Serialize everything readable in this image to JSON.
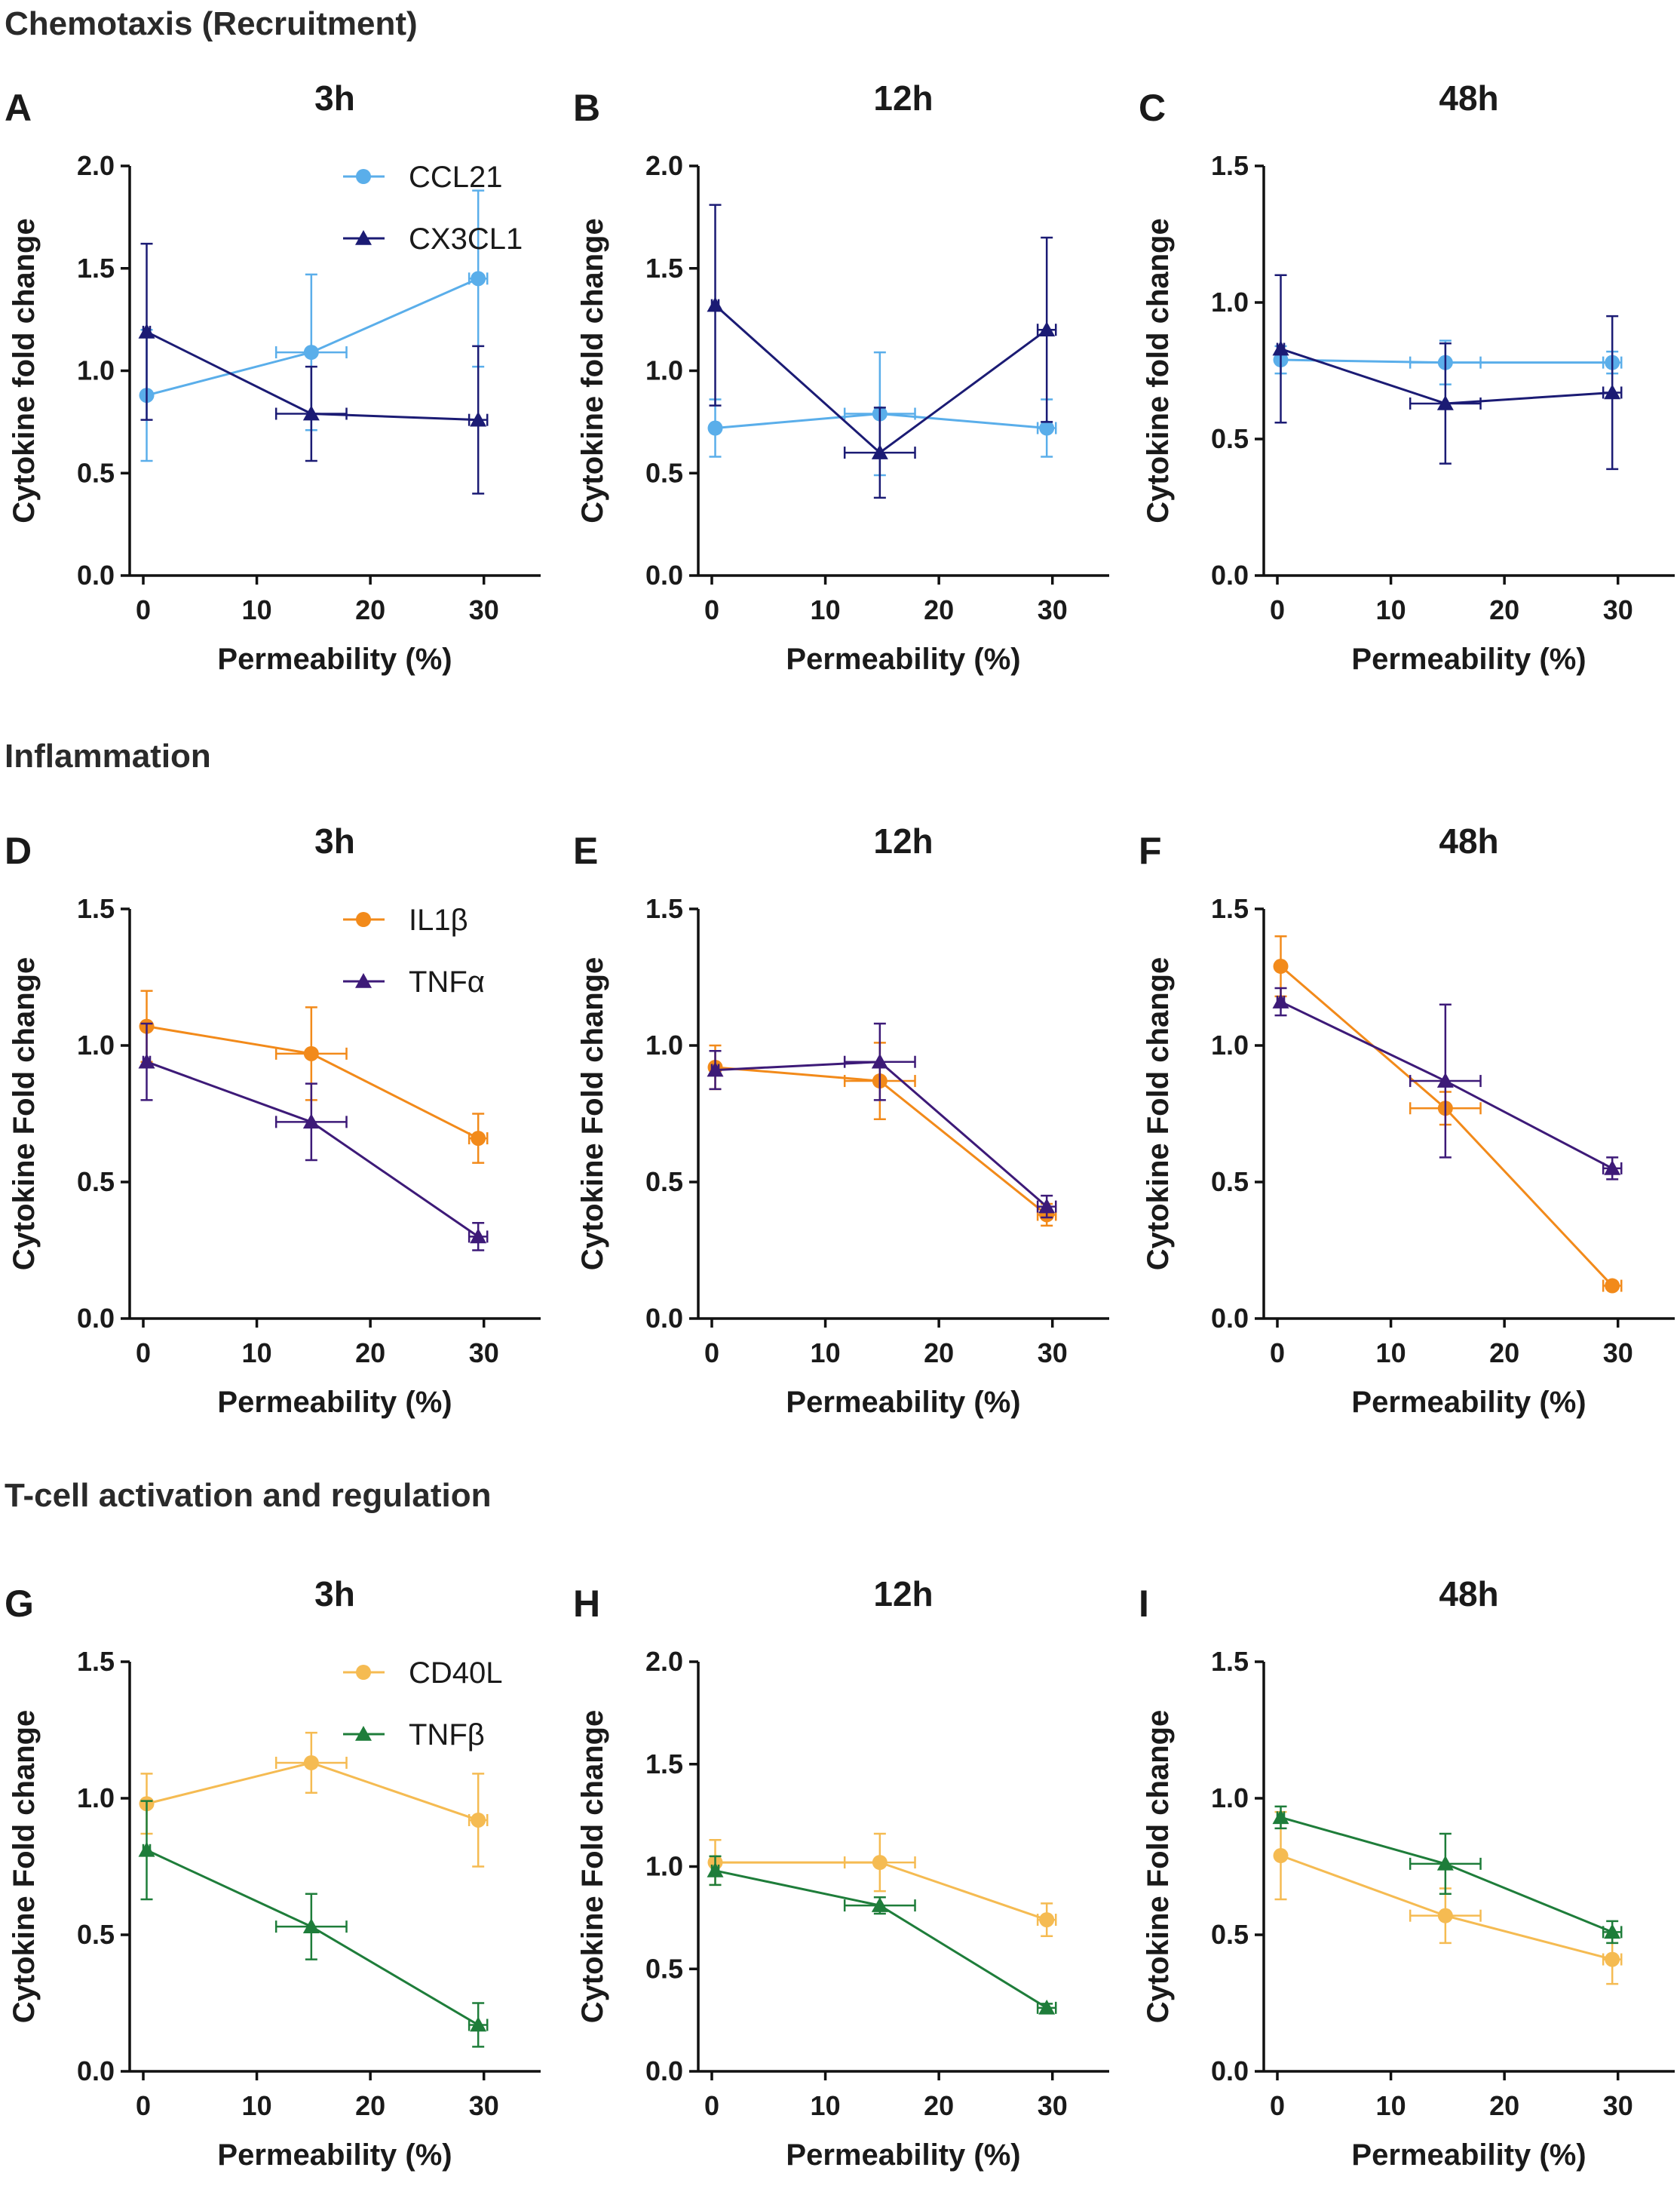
{
  "sections": [
    "Chemotaxis (Recruitment)",
    "Inflammation",
    "T-cell activation and regulation"
  ],
  "chart_data": [
    {
      "id": "A",
      "type": "line",
      "title": "3h",
      "xlabel": "Permeability (%)",
      "ylabel": "Cytokine fold change",
      "xlim": [
        0,
        35
      ],
      "xticks": [
        0,
        10,
        20,
        30
      ],
      "xtick_labels": [
        "0",
        "10",
        "20",
        "30"
      ],
      "ylim": [
        0,
        2.0
      ],
      "yticks": [
        0,
        0.5,
        1.0,
        1.5,
        2.0
      ],
      "ytick_labels": [
        "0.0",
        "0.5",
        "1.0",
        "1.5",
        "2.0"
      ],
      "legend": true,
      "series": [
        {
          "name": "CCL21",
          "color": "#5aaeea",
          "marker": "circle",
          "x": [
            0.3,
            14.8,
            29.5
          ],
          "y": [
            0.88,
            1.09,
            1.45
          ],
          "yerr": [
            0.32,
            0.38,
            0.43
          ],
          "xerr": [
            0.3,
            3.1,
            0.8
          ]
        },
        {
          "name": "CX3CL1",
          "color": "#1b1b74",
          "marker": "triangle",
          "x": [
            0.3,
            14.8,
            29.5
          ],
          "y": [
            1.19,
            0.79,
            0.76
          ],
          "yerr": [
            0.43,
            0.23,
            0.36
          ],
          "xerr": [
            0.3,
            3.1,
            0.8
          ]
        }
      ]
    },
    {
      "id": "B",
      "type": "line",
      "title": "12h",
      "xlabel": "Permeability (%)",
      "ylabel": "Cytokine fold change",
      "xlim": [
        0,
        35
      ],
      "xticks": [
        0,
        10,
        20,
        30
      ],
      "xtick_labels": [
        "0",
        "10",
        "20",
        "30"
      ],
      "ylim": [
        0,
        2.0
      ],
      "yticks": [
        0,
        0.5,
        1.0,
        1.5,
        2.0
      ],
      "ytick_labels": [
        "0.0",
        "0.5",
        "1.0",
        "1.5",
        "2.0"
      ],
      "legend": false,
      "series": [
        {
          "name": "CCL21",
          "color": "#5aaeea",
          "marker": "circle",
          "x": [
            0.3,
            14.8,
            29.5
          ],
          "y": [
            0.72,
            0.79,
            0.72
          ],
          "yerr": [
            0.14,
            0.3,
            0.14
          ],
          "xerr": [
            0.3,
            3.1,
            0.8
          ]
        },
        {
          "name": "CX3CL1",
          "color": "#1b1b74",
          "marker": "triangle",
          "x": [
            0.3,
            14.8,
            29.5
          ],
          "y": [
            1.32,
            0.6,
            1.2
          ],
          "yerr": [
            0.49,
            0.22,
            0.45
          ],
          "xerr": [
            0.3,
            3.1,
            0.8
          ]
        }
      ]
    },
    {
      "id": "C",
      "type": "line",
      "title": "48h",
      "xlabel": "Permeability (%)",
      "ylabel": "Cytokine fold change",
      "xlim": [
        0,
        35
      ],
      "xticks": [
        0,
        10,
        20,
        30
      ],
      "xtick_labels": [
        "0",
        "10",
        "20",
        "30"
      ],
      "ylim": [
        0,
        1.5
      ],
      "yticks": [
        0,
        0.5,
        1.0,
        1.5
      ],
      "ytick_labels": [
        "0.0",
        "0.5",
        "1.0",
        "1.5"
      ],
      "legend": false,
      "series": [
        {
          "name": "CCL21",
          "color": "#5aaeea",
          "marker": "circle",
          "x": [
            0.3,
            14.8,
            29.5
          ],
          "y": [
            0.79,
            0.78,
            0.78
          ],
          "yerr": [
            0.05,
            0.08,
            0.04
          ],
          "xerr": [
            0.3,
            3.1,
            0.8
          ]
        },
        {
          "name": "CX3CL1",
          "color": "#1b1b74",
          "marker": "triangle",
          "x": [
            0.3,
            14.8,
            29.5
          ],
          "y": [
            0.83,
            0.63,
            0.67
          ],
          "yerr": [
            0.27,
            0.22,
            0.28
          ],
          "xerr": [
            0.3,
            3.1,
            0.8
          ]
        }
      ]
    },
    {
      "id": "D",
      "type": "line",
      "title": "3h",
      "xlabel": "Permeability (%)",
      "ylabel": "Cytokine Fold change",
      "xlim": [
        0,
        35
      ],
      "xticks": [
        0,
        10,
        20,
        30
      ],
      "xtick_labels": [
        "0",
        "10",
        "20",
        "30"
      ],
      "ylim": [
        0,
        1.5
      ],
      "yticks": [
        0,
        0.5,
        1.0,
        1.5
      ],
      "ytick_labels": [
        "0.0",
        "0.5",
        "1.0",
        "1.5"
      ],
      "legend": true,
      "series": [
        {
          "name": "IL1β",
          "color": "#f28a1a",
          "marker": "circle",
          "x": [
            0.3,
            14.8,
            29.5
          ],
          "y": [
            1.07,
            0.97,
            0.66
          ],
          "yerr": [
            0.13,
            0.17,
            0.09
          ],
          "xerr": [
            0.3,
            3.1,
            0.8
          ]
        },
        {
          "name": "TNFα",
          "color": "#3d1a78",
          "marker": "triangle",
          "x": [
            0.3,
            14.8,
            29.5
          ],
          "y": [
            0.94,
            0.72,
            0.3
          ],
          "yerr": [
            0.14,
            0.14,
            0.05
          ],
          "xerr": [
            0.3,
            3.1,
            0.8
          ]
        }
      ]
    },
    {
      "id": "E",
      "type": "line",
      "title": "12h",
      "xlabel": "Permeability (%)",
      "ylabel": "Cytokine Fold change",
      "xlim": [
        0,
        35
      ],
      "xticks": [
        0,
        10,
        20,
        30
      ],
      "xtick_labels": [
        "0",
        "10",
        "20",
        "30"
      ],
      "ylim": [
        0,
        1.5
      ],
      "yticks": [
        0,
        0.5,
        1.0,
        1.5
      ],
      "ytick_labels": [
        "0.0",
        "0.5",
        "1.0",
        "1.5"
      ],
      "legend": false,
      "series": [
        {
          "name": "IL1β",
          "color": "#f28a1a",
          "marker": "circle",
          "x": [
            0.3,
            14.8,
            29.5
          ],
          "y": [
            0.92,
            0.87,
            0.38
          ],
          "yerr": [
            0.08,
            0.14,
            0.04
          ],
          "xerr": [
            0.3,
            3.1,
            0.8
          ]
        },
        {
          "name": "TNFα",
          "color": "#3d1a78",
          "marker": "triangle",
          "x": [
            0.3,
            14.8,
            29.5
          ],
          "y": [
            0.91,
            0.94,
            0.41
          ],
          "yerr": [
            0.07,
            0.14,
            0.04
          ],
          "xerr": [
            0.3,
            3.1,
            0.8
          ]
        }
      ]
    },
    {
      "id": "F",
      "type": "line",
      "title": "48h",
      "xlabel": "Permeability (%)",
      "ylabel": "Cytokine Fold change",
      "xlim": [
        0,
        35
      ],
      "xticks": [
        0,
        10,
        20,
        30
      ],
      "xtick_labels": [
        "0",
        "10",
        "20",
        "30"
      ],
      "ylim": [
        0,
        1.5
      ],
      "yticks": [
        0,
        0.5,
        1.0,
        1.5
      ],
      "ytick_labels": [
        "0.0",
        "0.5",
        "1.0",
        "1.5"
      ],
      "legend": false,
      "series": [
        {
          "name": "IL1β",
          "color": "#f28a1a",
          "marker": "circle",
          "x": [
            0.3,
            14.8,
            29.5
          ],
          "y": [
            1.29,
            0.77,
            0.12
          ],
          "yerr": [
            0.11,
            0.06,
            0.01
          ],
          "xerr": [
            0.3,
            3.1,
            0.8
          ]
        },
        {
          "name": "TNFα",
          "color": "#3d1a78",
          "marker": "triangle",
          "x": [
            0.3,
            14.8,
            29.5
          ],
          "y": [
            1.16,
            0.87,
            0.55
          ],
          "yerr": [
            0.05,
            0.28,
            0.04
          ],
          "xerr": [
            0.3,
            3.1,
            0.8
          ]
        }
      ]
    },
    {
      "id": "G",
      "type": "line",
      "title": "3h",
      "xlabel": "Permeability (%)",
      "ylabel": "Cytokine Fold change",
      "xlim": [
        0,
        35
      ],
      "xticks": [
        0,
        10,
        20,
        30
      ],
      "xtick_labels": [
        "0",
        "10",
        "20",
        "30"
      ],
      "ylim": [
        0,
        1.5
      ],
      "yticks": [
        0,
        0.5,
        1.0,
        1.5
      ],
      "ytick_labels": [
        "0.0",
        "0.5",
        "1.0",
        "1.5"
      ],
      "legend": true,
      "series": [
        {
          "name": "CD40L",
          "color": "#f5bb52",
          "marker": "circle",
          "x": [
            0.3,
            14.8,
            29.5
          ],
          "y": [
            0.98,
            1.13,
            0.92
          ],
          "yerr": [
            0.11,
            0.11,
            0.17
          ],
          "xerr": [
            0.3,
            3.1,
            0.8
          ]
        },
        {
          "name": "TNFβ",
          "color": "#1e7d3a",
          "marker": "triangle",
          "x": [
            0.3,
            14.8,
            29.5
          ],
          "y": [
            0.81,
            0.53,
            0.17
          ],
          "yerr": [
            0.18,
            0.12,
            0.08
          ],
          "xerr": [
            0.3,
            3.1,
            0.8
          ]
        }
      ]
    },
    {
      "id": "H",
      "type": "line",
      "title": "12h",
      "xlabel": "Permeability (%)",
      "ylabel": "Cytokine Fold change",
      "xlim": [
        0,
        35
      ],
      "xticks": [
        0,
        10,
        20,
        30
      ],
      "xtick_labels": [
        "0",
        "10",
        "20",
        "30"
      ],
      "ylim": [
        0,
        2.0
      ],
      "yticks": [
        0,
        0.5,
        1.0,
        1.5,
        2.0
      ],
      "ytick_labels": [
        "0.0",
        "0.5",
        "1.0",
        "1.5",
        "2.0"
      ],
      "legend": false,
      "series": [
        {
          "name": "CD40L",
          "color": "#f5bb52",
          "marker": "circle",
          "x": [
            0.3,
            14.8,
            29.5
          ],
          "y": [
            1.02,
            1.02,
            0.74
          ],
          "yerr": [
            0.11,
            0.14,
            0.08
          ],
          "xerr": [
            0.3,
            3.1,
            0.8
          ]
        },
        {
          "name": "TNFβ",
          "color": "#1e7d3a",
          "marker": "triangle",
          "x": [
            0.3,
            14.8,
            29.5
          ],
          "y": [
            0.98,
            0.81,
            0.31
          ],
          "yerr": [
            0.07,
            0.04,
            0.02
          ],
          "xerr": [
            0.3,
            3.1,
            0.8
          ]
        }
      ]
    },
    {
      "id": "I",
      "type": "line",
      "title": "48h",
      "xlabel": "Permeability (%)",
      "ylabel": "Cytokine Fold change",
      "xlim": [
        0,
        35
      ],
      "xticks": [
        0,
        10,
        20,
        30
      ],
      "xtick_labels": [
        "0",
        "10",
        "20",
        "30"
      ],
      "ylim": [
        0,
        1.5
      ],
      "yticks": [
        0,
        0.5,
        1.0,
        1.5
      ],
      "ytick_labels": [
        "0.0",
        "0.5",
        "1.0",
        "1.5"
      ],
      "legend": false,
      "series": [
        {
          "name": "CD40L",
          "color": "#f5bb52",
          "marker": "circle",
          "x": [
            0.3,
            14.8,
            29.5
          ],
          "y": [
            0.79,
            0.57,
            0.41
          ],
          "yerr": [
            0.16,
            0.1,
            0.09
          ],
          "xerr": [
            0.3,
            3.1,
            0.8
          ]
        },
        {
          "name": "TNFβ",
          "color": "#1e7d3a",
          "marker": "triangle",
          "x": [
            0.3,
            14.8,
            29.5
          ],
          "y": [
            0.93,
            0.76,
            0.51
          ],
          "yerr": [
            0.04,
            0.11,
            0.04
          ],
          "xerr": [
            0.3,
            3.1,
            0.8
          ]
        }
      ]
    }
  ]
}
